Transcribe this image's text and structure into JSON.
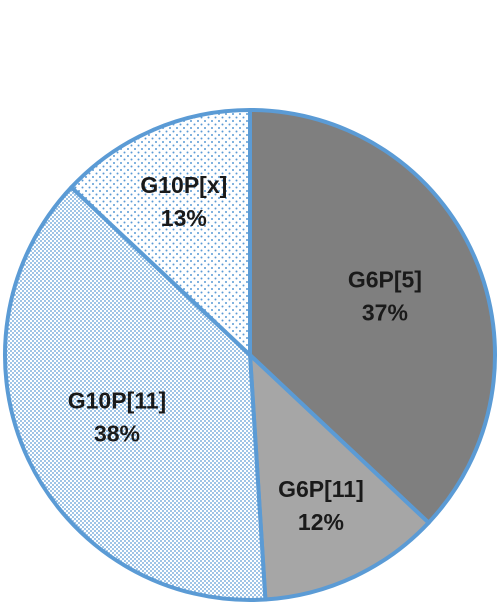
{
  "chart_data": {
    "type": "pie",
    "categories": [
      "G6P[5]",
      "G6P[11]",
      "G10P[11]",
      "G10P[x]"
    ],
    "values": [
      37,
      12,
      38,
      13
    ],
    "value_labels": [
      "37%",
      "12%",
      "38%",
      "13%"
    ],
    "colors": [
      "#7f7f7f",
      "#a6a6a6",
      "#ffffff",
      "#ffffff"
    ],
    "patterns": [
      null,
      null,
      "dense-dots",
      "sparse-dots"
    ],
    "edge_color": "#5b9bd5"
  }
}
